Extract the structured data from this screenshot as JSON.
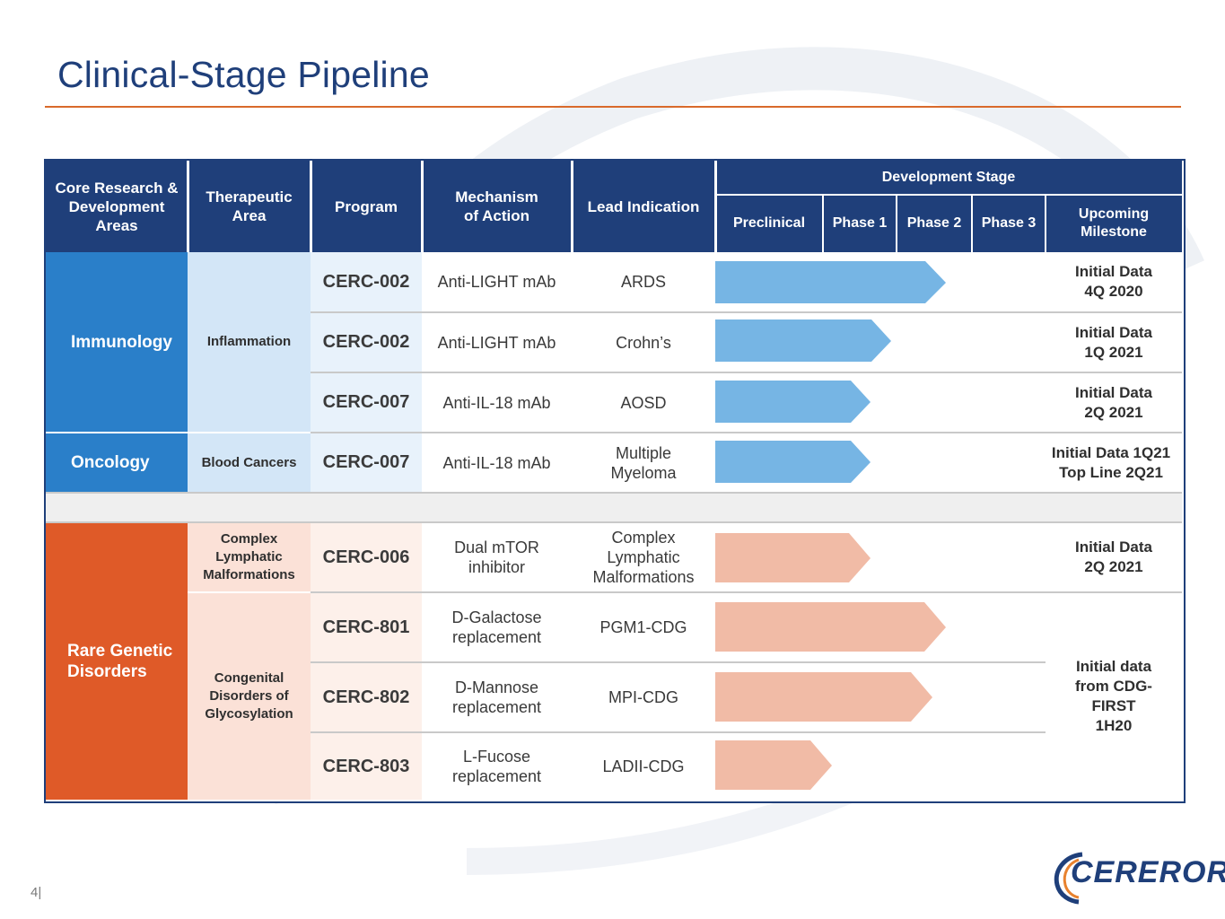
{
  "title": "Clinical-Stage Pipeline",
  "page_number": "4|",
  "logo_text": "CEREROR",
  "headers": {
    "core": "Core Research & Development Areas",
    "therapeutic": "Therapeutic Area",
    "program": "Program",
    "mechanism": "Mechanism of Action",
    "indication": "Lead Indication",
    "development_stage": "Development Stage",
    "preclinical": "Preclinical",
    "phase1": "Phase 1",
    "phase2": "Phase 2",
    "phase3": "Phase 3",
    "milestone": "Upcoming Milestone"
  },
  "core_areas": {
    "immunology": "Immunology",
    "oncology": "Oncology",
    "rare": "Rare Genetic Disorders"
  },
  "therapeutic_areas": {
    "inflammation": "Inflammation",
    "blood": "Blood Cancers",
    "complex": "Complex Lymphatic Malformations",
    "congenital": "Congenital Disorders of Glycosylation"
  },
  "rows": [
    {
      "program": "CERC-002",
      "mechanism": "Anti-LIGHT mAb",
      "indication": "ARDS",
      "milestone": "Initial Data 4Q 2020",
      "progress": "Phase 2"
    },
    {
      "program": "CERC-002",
      "mechanism": "Anti-LIGHT mAb",
      "indication": "Crohn’s",
      "milestone": "Initial Data 1Q 2021",
      "progress": "Phase 1"
    },
    {
      "program": "CERC-007",
      "mechanism": "Anti-IL-18 mAb",
      "indication": "AOSD",
      "milestone": "Initial Data 2Q 2021",
      "progress": "Phase 1"
    },
    {
      "program": "CERC-007",
      "mechanism": "Anti-IL-18 mAb",
      "indication": "Multiple Myeloma",
      "milestone": "Initial Data 1Q21 Top Line 2Q21",
      "progress": "Phase 1"
    },
    {
      "program": "CERC-006",
      "mechanism": "Dual mTOR inhibitor",
      "indication": "Complex Lymphatic Malformations",
      "milestone": "Initial Data 2Q 2021",
      "progress": "Phase 1"
    },
    {
      "program": "CERC-801",
      "mechanism": "D-Galactose replacement",
      "indication": "PGM1-CDG",
      "progress": "Phase 2"
    },
    {
      "program": "CERC-802",
      "mechanism": "D-Mannose replacement",
      "indication": "MPI-CDG",
      "progress": "Phase 2"
    },
    {
      "program": "CERC-803",
      "mechanism": "L-Fucose replacement",
      "indication": "LADII-CDG",
      "progress": "Phase 1"
    }
  ],
  "cdg_milestone": "Initial data from CDG-FIRST 1H20",
  "colors": {
    "navy": "#1f3f7a",
    "immunology": "#2a7fc9",
    "immunology_light": "#d3e6f7",
    "immunology_lighter": "#e8f2fb",
    "blue_arrow": "#76b5e4",
    "rare": "#df5a28",
    "rare_light": "#fbe1d7",
    "rare_lighter": "#fdf0ea",
    "orange_arrow": "#f1bba6",
    "rule": "#d96a2b"
  }
}
